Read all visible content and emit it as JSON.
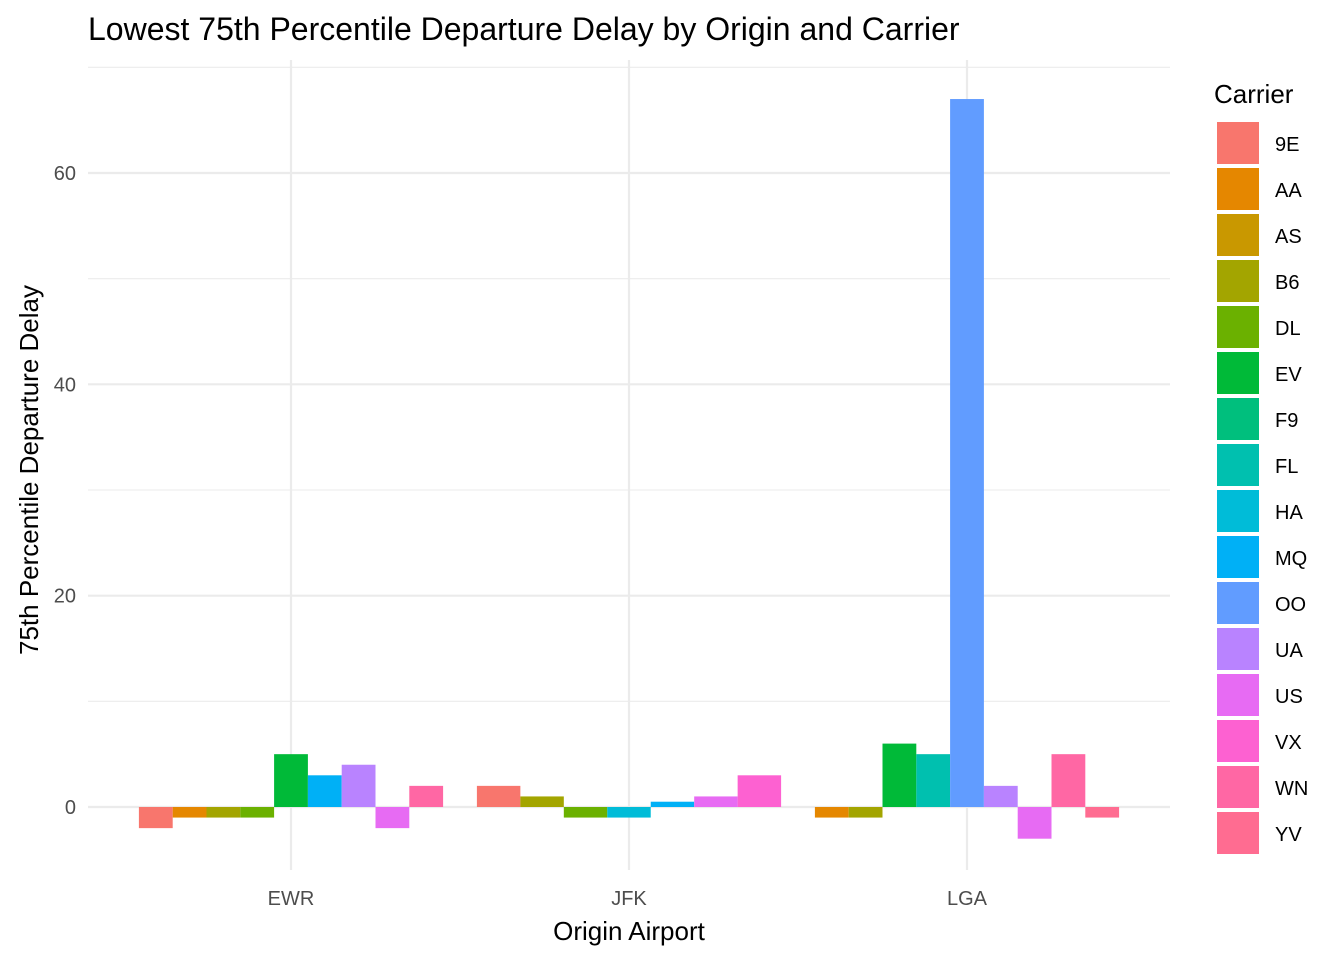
{
  "chart_data": {
    "type": "bar",
    "title": "Lowest 75th Percentile Departure Delay by Origin and Carrier",
    "xlabel": "Origin Airport",
    "ylabel": "75th Percentile Departure Delay",
    "categories": [
      "EWR",
      "JFK",
      "LGA"
    ],
    "y_ticks": [
      0,
      20,
      40,
      60
    ],
    "ylim": [
      -6,
      70
    ],
    "grid": true,
    "legend_title": "Carrier",
    "legend_position": "right",
    "series": [
      {
        "name": "9E",
        "color": "#F8766D",
        "values": [
          -2,
          2,
          null
        ]
      },
      {
        "name": "AA",
        "color": "#E58700",
        "values": [
          -1,
          null,
          -1
        ]
      },
      {
        "name": "AS",
        "color": "#C99800",
        "values": [
          null,
          null,
          null
        ]
      },
      {
        "name": "B6",
        "color": "#A3A500",
        "values": [
          -1,
          1,
          -1
        ]
      },
      {
        "name": "DL",
        "color": "#6BB100",
        "values": [
          -1,
          -1,
          null
        ]
      },
      {
        "name": "EV",
        "color": "#00BA38",
        "values": [
          5,
          null,
          6
        ]
      },
      {
        "name": "F9",
        "color": "#00BF7D",
        "values": [
          null,
          null,
          null
        ]
      },
      {
        "name": "FL",
        "color": "#00C0AF",
        "values": [
          null,
          null,
          5
        ]
      },
      {
        "name": "HA",
        "color": "#00BCD8",
        "values": [
          null,
          -1,
          null
        ]
      },
      {
        "name": "MQ",
        "color": "#00B0F6",
        "values": [
          3,
          0.5,
          null
        ]
      },
      {
        "name": "OO",
        "color": "#619CFF",
        "values": [
          null,
          null,
          67
        ]
      },
      {
        "name": "UA",
        "color": "#B983FF",
        "values": [
          4,
          null,
          2
        ]
      },
      {
        "name": "US",
        "color": "#E76BF3",
        "values": [
          -2,
          1,
          -3
        ]
      },
      {
        "name": "VX",
        "color": "#FD61D1",
        "values": [
          null,
          3,
          null
        ]
      },
      {
        "name": "WN",
        "color": "#FF67A4",
        "values": [
          2,
          null,
          5
        ]
      },
      {
        "name": "YV",
        "color": "#FF6C91",
        "values": [
          null,
          null,
          -1
        ]
      }
    ]
  }
}
